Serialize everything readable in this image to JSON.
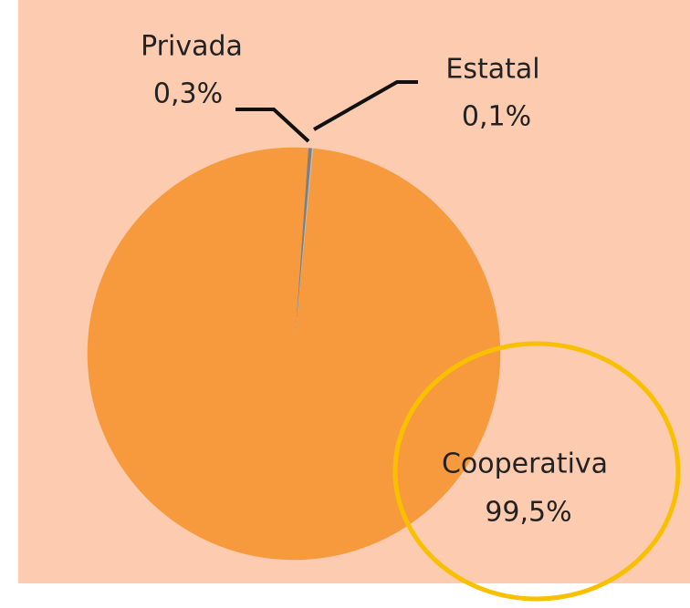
{
  "chart_data": {
    "type": "pie",
    "categories": [
      "Privada",
      "Estatal",
      "Cooperativa"
    ],
    "values": [
      0.3,
      0.1,
      99.5
    ],
    "value_labels": [
      "0,3%",
      "0,1%",
      "99,5%"
    ],
    "colors": [
      "#7f7f7f",
      "#bfbfbf",
      "#f79a3d"
    ]
  }
}
